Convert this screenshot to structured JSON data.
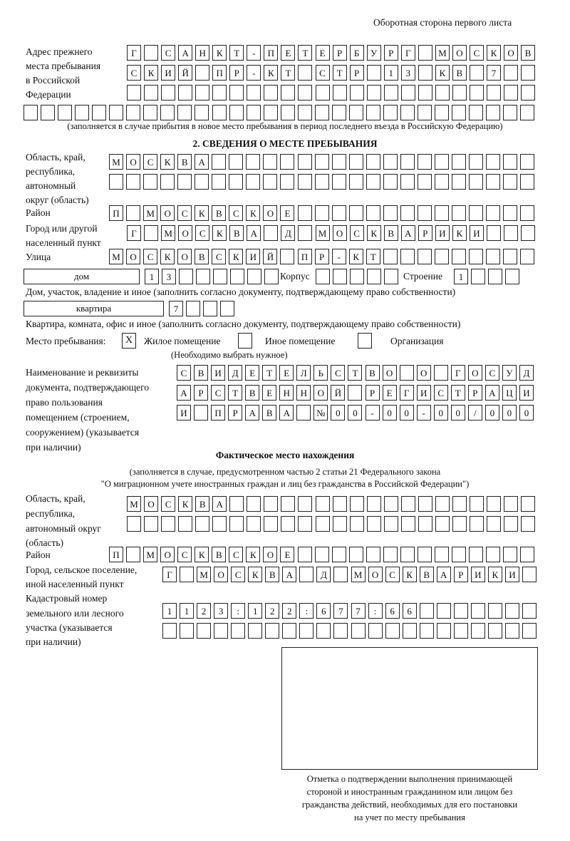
{
  "header": "Оборотная сторона первого листа",
  "prev_address": {
    "label": [
      "Адрес прежнего",
      "места пребывания",
      "в Российской",
      "Федерации"
    ],
    "rows": [
      [
        "Г",
        "",
        "С",
        "А",
        "Н",
        "К",
        "Т",
        "-",
        "П",
        "Е",
        "Т",
        "Е",
        "Р",
        "Б",
        "У",
        "Р",
        "Г",
        "",
        "М",
        "О",
        "С",
        "К",
        "О",
        "В"
      ],
      [
        "С",
        "К",
        "И",
        "Й",
        "",
        "П",
        "Р",
        "-",
        "К",
        "Т",
        "",
        "С",
        "Т",
        "Р",
        "",
        "1",
        "3",
        "",
        "К",
        "В",
        "",
        "7",
        "",
        ""
      ],
      [
        "",
        "",
        "",
        "",
        "",
        "",
        "",
        "",
        "",
        "",
        "",
        "",
        "",
        "",
        "",
        "",
        "",
        "",
        "",
        "",
        "",
        "",
        "",
        ""
      ],
      [
        "",
        "",
        "",
        "",
        "",
        "",
        "",
        "",
        "",
        "",
        "",
        "",
        "",
        "",
        "",
        "",
        "",
        "",
        "",
        "",
        "",
        "",
        "",
        "",
        "",
        "",
        "",
        "",
        "",
        ""
      ]
    ],
    "note": "(заполняется в случае прибытия в новое место пребывания в период последнего въезда в Российскую Федерацию)"
  },
  "section2": {
    "title": "2. СВЕДЕНИЯ О МЕСТЕ ПРЕБЫВАНИЯ",
    "region_label": [
      "Область, край,",
      "республика,",
      "автономный",
      "округ (область)"
    ],
    "region_rows": [
      [
        "М",
        "О",
        "С",
        "К",
        "В",
        "А",
        "",
        "",
        "",
        "",
        "",
        "",
        "",
        "",
        "",
        "",
        "",
        "",
        "",
        "",
        "",
        "",
        "",
        "",
        ""
      ],
      [
        "",
        "",
        "",
        "",
        "",
        "",
        "",
        "",
        "",
        "",
        "",
        "",
        "",
        "",
        "",
        "",
        "",
        "",
        "",
        "",
        "",
        "",
        "",
        "",
        ""
      ]
    ],
    "district_label": "Район",
    "district_row": [
      "П",
      "",
      "М",
      "О",
      "С",
      "К",
      "В",
      "С",
      "К",
      "О",
      "Е",
      "",
      "",
      "",
      "",
      "",
      "",
      "",
      "",
      "",
      "",
      "",
      "",
      "",
      ""
    ],
    "city_label": [
      "Город или другой",
      "населенный пункт"
    ],
    "city_row": [
      "Г",
      "",
      "М",
      "О",
      "С",
      "К",
      "В",
      "А",
      "",
      "Д",
      "",
      "М",
      "О",
      "С",
      "К",
      "В",
      "А",
      "Р",
      "И",
      "К",
      "И",
      "",
      "",
      ""
    ],
    "street_label": "Улица",
    "street_row": [
      "М",
      "О",
      "С",
      "К",
      "О",
      "В",
      "С",
      "К",
      "И",
      "Й",
      "",
      "П",
      "Р",
      "-",
      "К",
      "Т",
      "",
      "",
      "",
      "",
      "",
      "",
      "",
      "",
      ""
    ],
    "house_type": "дом",
    "house_row": [
      "1",
      "3",
      "",
      "",
      "",
      "",
      "",
      ""
    ],
    "korpus_label": "Корпус",
    "korpus_row": [
      "",
      "",
      "",
      "",
      ""
    ],
    "building_label": "Строение",
    "building_row": [
      "1",
      "",
      "",
      ""
    ],
    "house_note": "Дом, участок, владение и иное (заполнить согласно документу, подтверждающему право собственности)",
    "apt_type": "квартира",
    "apt_row": [
      "7",
      "",
      "",
      ""
    ],
    "apt_note": "Квартира, комната, офис и иное (заполнить согласно документу, подтверждающему право собственности)",
    "stay_label": "Место пребывания:",
    "stay_options": [
      {
        "label": "Жилое помещение",
        "mark": "X"
      },
      {
        "label": "Иное помещение",
        "mark": ""
      },
      {
        "label": "Организация",
        "mark": ""
      }
    ],
    "stay_note": "(Необходимо выбрать нужное)",
    "doc_label": [
      "Наименование и реквизиты",
      "документа, подтверждающего",
      "право пользования",
      "помещением (строением,",
      "сооружением) (указывается",
      "при наличии)"
    ],
    "doc_rows": [
      [
        "С",
        "В",
        "И",
        "Д",
        "Е",
        "Т",
        "Е",
        "Л",
        "Ь",
        "С",
        "Т",
        "В",
        "О",
        "",
        "О",
        "",
        "Г",
        "О",
        "С",
        "У",
        "Д"
      ],
      [
        "А",
        "Р",
        "С",
        "Т",
        "В",
        "Е",
        "Н",
        "Н",
        "О",
        "Й",
        "",
        "Р",
        "Е",
        "Г",
        "И",
        "С",
        "Т",
        "Р",
        "А",
        "Ц",
        "И"
      ],
      [
        "И",
        "",
        "П",
        "Р",
        "А",
        "В",
        "А",
        "",
        "№",
        "0",
        "0",
        "-",
        "0",
        "0",
        "-",
        "0",
        "0",
        "/",
        "0",
        "0",
        "0"
      ]
    ]
  },
  "actual": {
    "title": "Фактическое место нахождения",
    "note": [
      "(заполняется в случае, предусмотренном частью 2 статьи 21 Федерального закона",
      "\"О миграционном учете иностранных граждан и лиц без гражданства в Российской Федерации\")"
    ],
    "region_label": [
      "Область, край,",
      "республика,",
      "автономный округ",
      "(область)"
    ],
    "region_rows": [
      [
        "М",
        "О",
        "С",
        "К",
        "В",
        "А",
        "",
        "",
        "",
        "",
        "",
        "",
        "",
        "",
        "",
        "",
        "",
        "",
        "",
        "",
        "",
        "",
        "",
        ""
      ],
      [
        "",
        "",
        "",
        "",
        "",
        "",
        "",
        "",
        "",
        "",
        "",
        "",
        "",
        "",
        "",
        "",
        "",
        "",
        "",
        "",
        "",
        "",
        "",
        ""
      ]
    ],
    "district_label": "Район",
    "district_row": [
      "П",
      "",
      "М",
      "О",
      "С",
      "К",
      "В",
      "С",
      "К",
      "О",
      "Е",
      "",
      "",
      "",
      "",
      "",
      "",
      "",
      "",
      "",
      "",
      "",
      "",
      "",
      ""
    ],
    "city_label": [
      "Город, сельское поселение,",
      "иной населенный пункт"
    ],
    "city_row": [
      "Г",
      "",
      "М",
      "О",
      "С",
      "К",
      "В",
      "А",
      "",
      "Д",
      "",
      "М",
      "О",
      "С",
      "К",
      "В",
      "А",
      "Р",
      "И",
      "К",
      "И",
      ""
    ],
    "cadastral_label": [
      "Кадастровый номер",
      "земельного или лесного",
      "участка (указывается",
      "при наличии)"
    ],
    "cadastral_rows": [
      [
        "1",
        "1",
        "2",
        "3",
        ":",
        "1",
        "2",
        "2",
        ":",
        "6",
        "7",
        "7",
        ":",
        "6",
        "6",
        "",
        "",
        "",
        "",
        "",
        "",
        ""
      ],
      [
        "",
        "",
        "",
        "",
        "",
        "",
        "",
        "",
        "",
        "",
        "",
        "",
        "",
        "",
        "",
        "",
        "",
        "",
        "",
        "",
        "",
        ""
      ]
    ]
  },
  "stamp_caption": [
    "Отметка о подтверждении выполнения принимающей",
    "стороной и иностранным гражданином или лицом без",
    "гражданства действий, необходимых для его постановки",
    "на учет по месту пребывания"
  ]
}
